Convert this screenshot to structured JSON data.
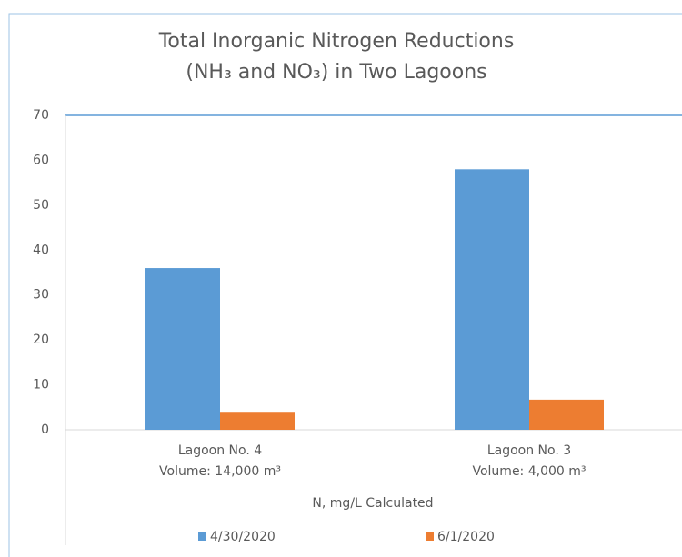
{
  "chart_data": {
    "type": "bar",
    "title": [
      "Total Inorganic Nitrogen Reductions",
      "(NH₃ and NO₃) in Two Lagoons"
    ],
    "categories": [
      [
        "Lagoon No. 4",
        "Volume: 14,000 m³"
      ],
      [
        "Lagoon No. 3",
        "Volume: 4,000 m³"
      ]
    ],
    "x_label": "N, mg/L Calculated",
    "series": [
      {
        "name": "4/30/2020",
        "color": "#5b9bd5",
        "values": [
          36,
          58
        ]
      },
      {
        "name": "6/1/2020",
        "color": "#ed7d31",
        "values": [
          4,
          6.7
        ]
      }
    ],
    "ylim": [
      0,
      70
    ],
    "yticks": [
      0,
      10,
      20,
      30,
      40,
      50,
      60,
      70
    ],
    "grid": false,
    "legend": "bottom"
  }
}
